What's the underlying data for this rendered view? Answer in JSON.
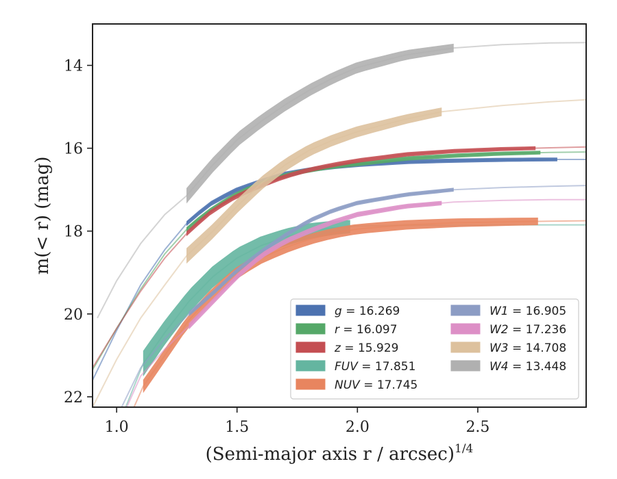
{
  "chart_data": {
    "type": "line",
    "xlabel": "(Semi-major axis r / arcsec)",
    "xlabel_sup": "1/4",
    "ylabel": "m(< r) (mag)",
    "xlim": [
      0.9,
      2.95
    ],
    "ylim": [
      22.25,
      13.0
    ],
    "y_inverted": true,
    "xticks": [
      1.0,
      1.5,
      2.0,
      2.5
    ],
    "xtick_labels": [
      "1.0",
      "1.5",
      "2.0",
      "2.5"
    ],
    "yticks": [
      14,
      16,
      18,
      20,
      22
    ],
    "ytick_labels": [
      "14",
      "16",
      "18",
      "20",
      "22"
    ],
    "grid": false,
    "legend_position": "lower-right",
    "series": [
      {
        "name": "g = 16.269",
        "label_var": "g",
        "label_val": "16.269",
        "color": "#4c72b0",
        "x": [
          0.9,
          1.0,
          1.1,
          1.2,
          1.3,
          1.4,
          1.5,
          1.6,
          1.7,
          1.8,
          1.9,
          2.0,
          2.2,
          2.4,
          2.6,
          2.8,
          2.95
        ],
        "y": [
          21.6,
          20.4,
          19.3,
          18.45,
          17.75,
          17.3,
          17.0,
          16.8,
          16.62,
          16.52,
          16.45,
          16.4,
          16.33,
          16.3,
          16.28,
          16.27,
          16.27
        ],
        "band": [
          1.29,
          2.83
        ],
        "band_width": 0.05
      },
      {
        "name": "r = 16.097",
        "label_var": "r",
        "label_val": "16.097",
        "color": "#55a868",
        "x": [
          0.9,
          1.0,
          1.1,
          1.2,
          1.3,
          1.4,
          1.5,
          1.6,
          1.7,
          1.8,
          1.9,
          2.0,
          2.2,
          2.4,
          2.6,
          2.8,
          2.95
        ],
        "y": [
          21.35,
          20.35,
          19.4,
          18.55,
          17.9,
          17.45,
          17.1,
          16.85,
          16.65,
          16.53,
          16.44,
          16.38,
          16.25,
          16.18,
          16.13,
          16.1,
          16.09
        ],
        "band": [
          1.29,
          2.76
        ],
        "band_width": 0.05
      },
      {
        "name": "z = 15.929",
        "label_var": "z",
        "label_val": "15.929",
        "color": "#c44e52",
        "x": [
          0.9,
          1.0,
          1.1,
          1.2,
          1.3,
          1.4,
          1.5,
          1.6,
          1.7,
          1.8,
          1.9,
          2.0,
          2.2,
          2.4,
          2.6,
          2.8,
          2.95
        ],
        "y": [
          21.3,
          20.35,
          19.45,
          18.65,
          18.0,
          17.5,
          17.15,
          16.9,
          16.68,
          16.52,
          16.4,
          16.3,
          16.15,
          16.07,
          16.02,
          15.99,
          15.97
        ],
        "band": [
          1.29,
          2.74
        ],
        "band_width": 0.05
      },
      {
        "name": "FUV = 17.851",
        "label_var": "FUV",
        "label_val": "17.851",
        "color": "#64b5a0",
        "x": [
          1.0,
          1.11,
          1.2,
          1.3,
          1.4,
          1.5,
          1.6,
          1.7,
          1.8,
          1.9,
          2.0,
          2.2,
          2.4,
          2.6,
          2.8,
          2.95
        ],
        "y": [
          22.8,
          21.2,
          20.45,
          19.7,
          19.1,
          18.65,
          18.35,
          18.15,
          18.0,
          17.92,
          17.88,
          17.86,
          17.86,
          17.85,
          17.85,
          17.85
        ],
        "band": [
          1.11,
          1.97
        ],
        "band_width": 0.55
      },
      {
        "name": "NUV = 17.745",
        "label_var": "NUV",
        "label_val": "17.745",
        "color": "#e8855f",
        "x": [
          1.0,
          1.11,
          1.2,
          1.3,
          1.4,
          1.5,
          1.6,
          1.7,
          1.8,
          1.9,
          2.0,
          2.2,
          2.4,
          2.6,
          2.8,
          2.95
        ],
        "y": [
          23.2,
          21.75,
          21.0,
          20.15,
          19.5,
          19.0,
          18.65,
          18.4,
          18.2,
          18.05,
          17.95,
          17.85,
          17.8,
          17.78,
          17.76,
          17.75
        ],
        "band": [
          1.11,
          2.75
        ],
        "band_width": 0.25
      },
      {
        "name": "W1 = 16.905",
        "label_var": "W1",
        "label_val": "16.905",
        "color": "#8c9cc4",
        "x": [
          1.0,
          1.1,
          1.2,
          1.3,
          1.4,
          1.5,
          1.6,
          1.7,
          1.8,
          1.9,
          2.0,
          2.2,
          2.4,
          2.6,
          2.8,
          2.95
        ],
        "y": [
          22.5,
          21.3,
          20.6,
          20.0,
          19.5,
          18.95,
          18.5,
          18.1,
          17.75,
          17.5,
          17.32,
          17.12,
          17.0,
          16.95,
          16.92,
          16.9
        ],
        "band": [
          1.3,
          2.4
        ],
        "band_width": 0.05
      },
      {
        "name": "W2 = 17.236",
        "label_var": "W2",
        "label_val": "17.236",
        "color": "#dd8fc6",
        "x": [
          1.0,
          1.1,
          1.2,
          1.3,
          1.4,
          1.5,
          1.6,
          1.7,
          1.8,
          1.9,
          2.0,
          2.2,
          2.4,
          2.6,
          2.8,
          2.95
        ],
        "y": [
          22.8,
          21.5,
          20.85,
          20.3,
          19.7,
          19.1,
          18.6,
          18.25,
          18.0,
          17.78,
          17.6,
          17.4,
          17.3,
          17.26,
          17.24,
          17.24
        ],
        "band": [
          1.3,
          2.35
        ],
        "band_width": 0.08
      },
      {
        "name": "W3 = 14.708",
        "label_var": "W3",
        "label_val": "14.708",
        "color": "#ddc19d",
        "x": [
          0.9,
          1.0,
          1.1,
          1.2,
          1.29,
          1.4,
          1.5,
          1.6,
          1.7,
          1.8,
          1.9,
          2.0,
          2.2,
          2.35,
          2.6,
          2.8,
          2.95
        ],
        "y": [
          22.25,
          21.1,
          20.1,
          19.3,
          18.6,
          18.0,
          17.4,
          16.85,
          16.4,
          16.05,
          15.8,
          15.6,
          15.3,
          15.12,
          14.97,
          14.88,
          14.83
        ],
        "band": [
          1.29,
          2.35
        ],
        "band_width": 0.3
      },
      {
        "name": "W4 = 13.448",
        "label_var": "W4",
        "label_val": "13.448",
        "color": "#b0b0b0",
        "x": [
          0.92,
          1.0,
          1.1,
          1.2,
          1.29,
          1.4,
          1.5,
          1.6,
          1.7,
          1.8,
          1.9,
          2.0,
          2.2,
          2.4,
          2.6,
          2.8,
          2.95
        ],
        "y": [
          20.1,
          19.2,
          18.3,
          17.6,
          17.15,
          16.4,
          15.8,
          15.35,
          14.95,
          14.6,
          14.3,
          14.05,
          13.75,
          13.58,
          13.5,
          13.46,
          13.45
        ],
        "band": [
          1.29,
          2.4
        ],
        "band_width": 0.3
      }
    ]
  }
}
